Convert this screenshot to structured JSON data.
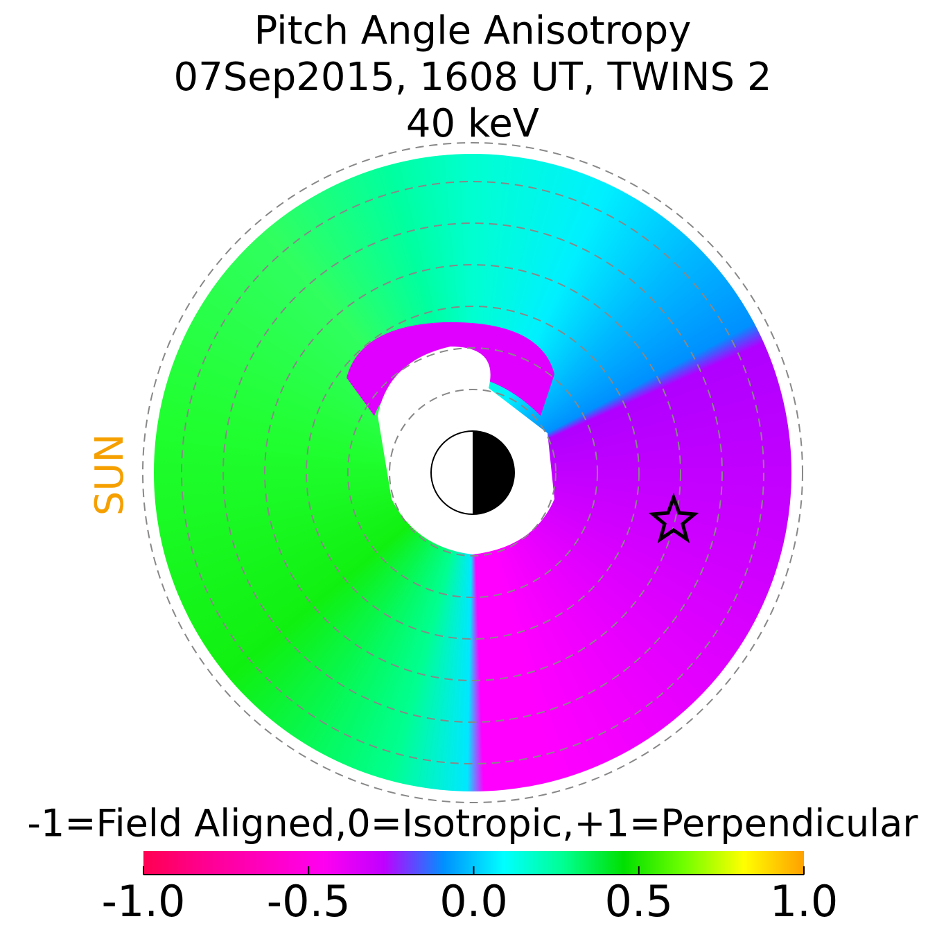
{
  "title_lines": [
    "Pitch Angle Anisotropy",
    "07Sep2015, 1608 UT,  TWINS 2",
    "40 keV"
  ],
  "sun_label": "SUN",
  "sun_color": "#f5a000",
  "chart_data": {
    "type": "colorbar",
    "label": "-1=Field Aligned,0=Isotropic,+1=Perpendicular",
    "xlim": [
      -1,
      1
    ],
    "xticks": [
      {
        "value": -1,
        "label": "-1.0"
      },
      {
        "value": -0.5,
        "label": "-0.5"
      },
      {
        "value": 0,
        "label": "0.0"
      },
      {
        "value": 0.5,
        "label": "0.5"
      },
      {
        "value": 1,
        "label": "1.0"
      }
    ],
    "colors": [
      "#ff0050",
      "#ff0090",
      "#ff00c0",
      "#ff00f0",
      "#c000ff",
      "#0090ff",
      "#00ffff",
      "#00ff90",
      "#00e000",
      "#70ff00",
      "#ffff00",
      "#ffa000"
    ]
  }
}
